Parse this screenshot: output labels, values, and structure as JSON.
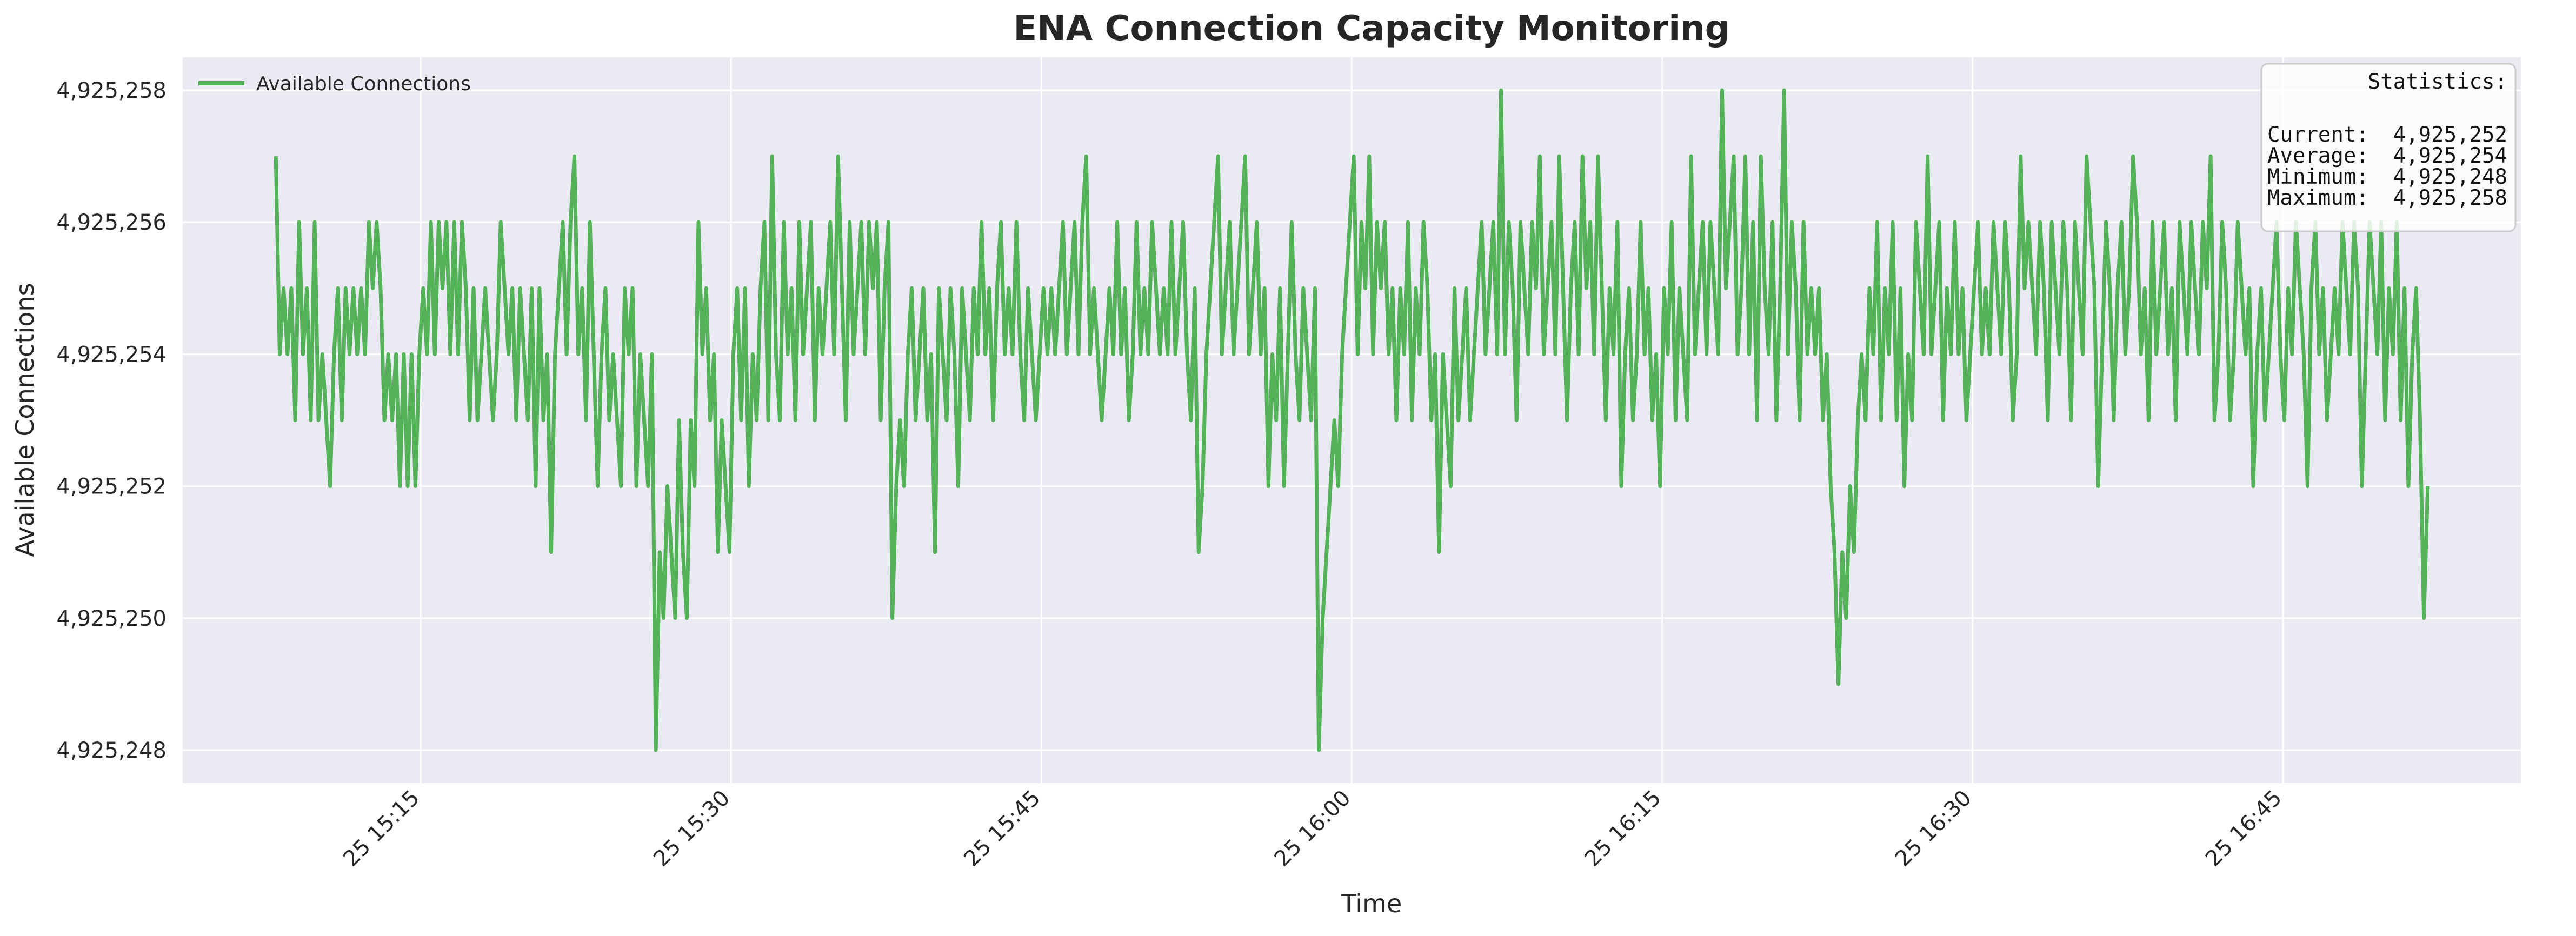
{
  "chart_data": {
    "type": "line",
    "title": "ENA Connection Capacity Monitoring",
    "xlabel": "Time",
    "ylabel": "Available Connections",
    "date_label": "25",
    "x_start": "2024-01-25T15:08:00",
    "x_end": "2024-01-25T16:52:00",
    "xlim": [
      "2024-01-25T15:03:30",
      "2024-01-25T16:56:30"
    ],
    "ylim": [
      4925247.5,
      4925258.5
    ],
    "x_ticks": [
      "15:15",
      "15:30",
      "15:45",
      "16:00",
      "16:15",
      "16:30",
      "16:45"
    ],
    "y_ticks": [
      4925248,
      4925250,
      4925252,
      4925254,
      4925256,
      4925258
    ],
    "y_tick_labels": [
      "4,925,248",
      "4,925,250",
      "4,925,252",
      "4,925,254",
      "4,925,256",
      "4,925,258"
    ],
    "grid": true,
    "legend_position": "top-left",
    "series": [
      {
        "name": "Available Connections",
        "color": "#4caf50",
        "values": [
          4925257,
          4925254,
          4925255,
          4925254,
          4925255,
          4925253,
          4925256,
          4925254,
          4925255,
          4925253,
          4925256,
          4925253,
          4925254,
          4925253,
          4925252,
          4925254,
          4925255,
          4925253,
          4925255,
          4925254,
          4925255,
          4925254,
          4925255,
          4925254,
          4925256,
          4925255,
          4925256,
          4925255,
          4925253,
          4925254,
          4925253,
          4925254,
          4925252,
          4925254,
          4925252,
          4925254,
          4925252,
          4925254,
          4925255,
          4925254,
          4925256,
          4925254,
          4925256,
          4925255,
          4925256,
          4925254,
          4925256,
          4925254,
          4925256,
          4925255,
          4925253,
          4925255,
          4925253,
          4925254,
          4925255,
          4925254,
          4925253,
          4925254,
          4925256,
          4925255,
          4925254,
          4925255,
          4925253,
          4925255,
          4925254,
          4925253,
          4925255,
          4925252,
          4925255,
          4925253,
          4925254,
          4925251,
          4925254,
          4925255,
          4925256,
          4925254,
          4925256,
          4925257,
          4925254,
          4925255,
          4925253,
          4925256,
          4925254,
          4925252,
          4925254,
          4925255,
          4925253,
          4925254,
          4925253,
          4925252,
          4925255,
          4925254,
          4925255,
          4925252,
          4925254,
          4925253,
          4925252,
          4925254,
          4925248,
          4925251,
          4925250,
          4925252,
          4925251,
          4925250,
          4925253,
          4925251,
          4925250,
          4925253,
          4925252,
          4925256,
          4925254,
          4925255,
          4925253,
          4925254,
          4925251,
          4925253,
          4925252,
          4925251,
          4925254,
          4925255,
          4925253,
          4925255,
          4925252,
          4925254,
          4925253,
          4925255,
          4925256,
          4925253,
          4925257,
          4925254,
          4925253,
          4925256,
          4925254,
          4925255,
          4925253,
          4925256,
          4925254,
          4925255,
          4925256,
          4925253,
          4925255,
          4925254,
          4925255,
          4925256,
          4925254,
          4925257,
          4925255,
          4925253,
          4925256,
          4925254,
          4925255,
          4925256,
          4925254,
          4925256,
          4925255,
          4925256,
          4925253,
          4925255,
          4925256,
          4925250,
          4925252,
          4925253,
          4925252,
          4925254,
          4925255,
          4925253,
          4925254,
          4925255,
          4925253,
          4925254,
          4925251,
          4925255,
          4925254,
          4925253,
          4925255,
          4925254,
          4925252,
          4925255,
          4925254,
          4925253,
          4925255,
          4925254,
          4925256,
          4925254,
          4925255,
          4925253,
          4925255,
          4925256,
          4925254,
          4925255,
          4925254,
          4925256,
          4925254,
          4925253,
          4925255,
          4925254,
          4925253,
          4925254,
          4925255,
          4925254,
          4925255,
          4925254,
          4925255,
          4925256,
          4925254,
          4925255,
          4925256,
          4925254,
          4925256,
          4925257,
          4925254,
          4925255,
          4925254,
          4925253,
          4925254,
          4925255,
          4925254,
          4925256,
          4925254,
          4925255,
          4925253,
          4925254,
          4925256,
          4925254,
          4925255,
          4925254,
          4925256,
          4925255,
          4925254,
          4925255,
          4925254,
          4925256,
          4925254,
          4925255,
          4925256,
          4925254,
          4925253,
          4925255,
          4925251,
          4925252,
          4925254,
          4925255,
          4925256,
          4925257,
          4925254,
          4925255,
          4925256,
          4925254,
          4925255,
          4925256,
          4925257,
          4925254,
          4925255,
          4925256,
          4925254,
          4925255,
          4925252,
          4925254,
          4925253,
          4925255,
          4925252,
          4925254,
          4925256,
          4925254,
          4925253,
          4925255,
          4925254,
          4925253,
          4925255,
          4925248,
          4925250,
          4925251,
          4925252,
          4925253,
          4925252,
          4925254,
          4925255,
          4925256,
          4925257,
          4925254,
          4925256,
          4925255,
          4925257,
          4925254,
          4925256,
          4925255,
          4925256,
          4925254,
          4925255,
          4925253,
          4925255,
          4925254,
          4925256,
          4925253,
          4925255,
          4925254,
          4925256,
          4925255,
          4925253,
          4925254,
          4925251,
          4925254,
          4925253,
          4925252,
          4925255,
          4925253,
          4925254,
          4925255,
          4925253,
          4925254,
          4925255,
          4925256,
          4925254,
          4925255,
          4925256,
          4925254,
          4925258,
          4925254,
          4925256,
          4925255,
          4925253,
          4925256,
          4925255,
          4925254,
          4925256,
          4925255,
          4925257,
          4925254,
          4925255,
          4925256,
          4925254,
          4925257,
          4925255,
          4925253,
          4925255,
          4925256,
          4925254,
          4925257,
          4925255,
          4925256,
          4925254,
          4925257,
          4925255,
          4925253,
          4925255,
          4925254,
          4925256,
          4925252,
          4925254,
          4925255,
          4925253,
          4925254,
          4925256,
          4925254,
          4925255,
          4925253,
          4925254,
          4925252,
          4925255,
          4925254,
          4925256,
          4925253,
          4925255,
          4925254,
          4925253,
          4925257,
          4925254,
          4925255,
          4925256,
          4925254,
          4925256,
          4925255,
          4925254,
          4925258,
          4925255,
          4925256,
          4925257,
          4925254,
          4925255,
          4925257,
          4925254,
          4925256,
          4925253,
          4925257,
          4925255,
          4925254,
          4925256,
          4925253,
          4925255,
          4925258,
          4925254,
          4925256,
          4925255,
          4925253,
          4925256,
          4925254,
          4925255,
          4925254,
          4925255,
          4925253,
          4925254,
          4925252,
          4925251,
          4925249,
          4925251,
          4925250,
          4925252,
          4925251,
          4925253,
          4925254,
          4925253,
          4925255,
          4925254,
          4925256,
          4925253,
          4925255,
          4925254,
          4925256,
          4925253,
          4925255,
          4925252,
          4925254,
          4925253,
          4925256,
          4925255,
          4925254,
          4925257,
          4925254,
          4925255,
          4925256,
          4925253,
          4925255,
          4925254,
          4925256,
          4925254,
          4925255,
          4925253,
          4925254,
          4925255,
          4925256,
          4925254,
          4925255,
          4925254,
          4925256,
          4925255,
          4925254,
          4925256,
          4925255,
          4925253,
          4925254,
          4925257,
          4925255,
          4925256,
          4925255,
          4925254,
          4925256,
          4925255,
          4925253,
          4925256,
          4925255,
          4925254,
          4925256,
          4925255,
          4925253,
          4925256,
          4925255,
          4925254,
          4925257,
          4925256,
          4925255,
          4925252,
          4925254,
          4925256,
          4925255,
          4925253,
          4925255,
          4925256,
          4925254,
          4925255,
          4925257,
          4925256,
          4925254,
          4925255,
          4925253,
          4925256,
          4925254,
          4925255,
          4925256,
          4925254,
          4925255,
          4925253,
          4925256,
          4925255,
          4925254,
          4925256,
          4925255,
          4925254,
          4925256,
          4925255,
          4925257,
          4925253,
          4925254,
          4925256,
          4925255,
          4925253,
          4925254,
          4925256,
          4925255,
          4925254,
          4925255,
          4925252,
          4925254,
          4925255,
          4925253,
          4925254,
          4925255,
          4925256,
          4925254,
          4925253,
          4925255,
          4925254,
          4925256,
          4925255,
          4925254,
          4925252,
          4925255,
          4925256,
          4925254,
          4925255,
          4925253,
          4925254,
          4925255,
          4925254,
          4925256,
          4925255,
          4925254,
          4925256,
          4925255,
          4925252,
          4925254,
          4925256,
          4925255,
          4925254,
          4925256,
          4925253,
          4925255,
          4925254,
          4925256,
          4925253,
          4925255,
          4925252,
          4925254,
          4925255,
          4925253,
          4925250,
          4925252
        ]
      }
    ],
    "stats_box": {
      "title": "Statistics:",
      "rows": [
        {
          "label": "Current:",
          "value": "4,925,252"
        },
        {
          "label": "Average:",
          "value": "4,925,254"
        },
        {
          "label": "Minimum:",
          "value": "4,925,248"
        },
        {
          "label": "Maximum:",
          "value": "4,925,258"
        }
      ]
    }
  }
}
